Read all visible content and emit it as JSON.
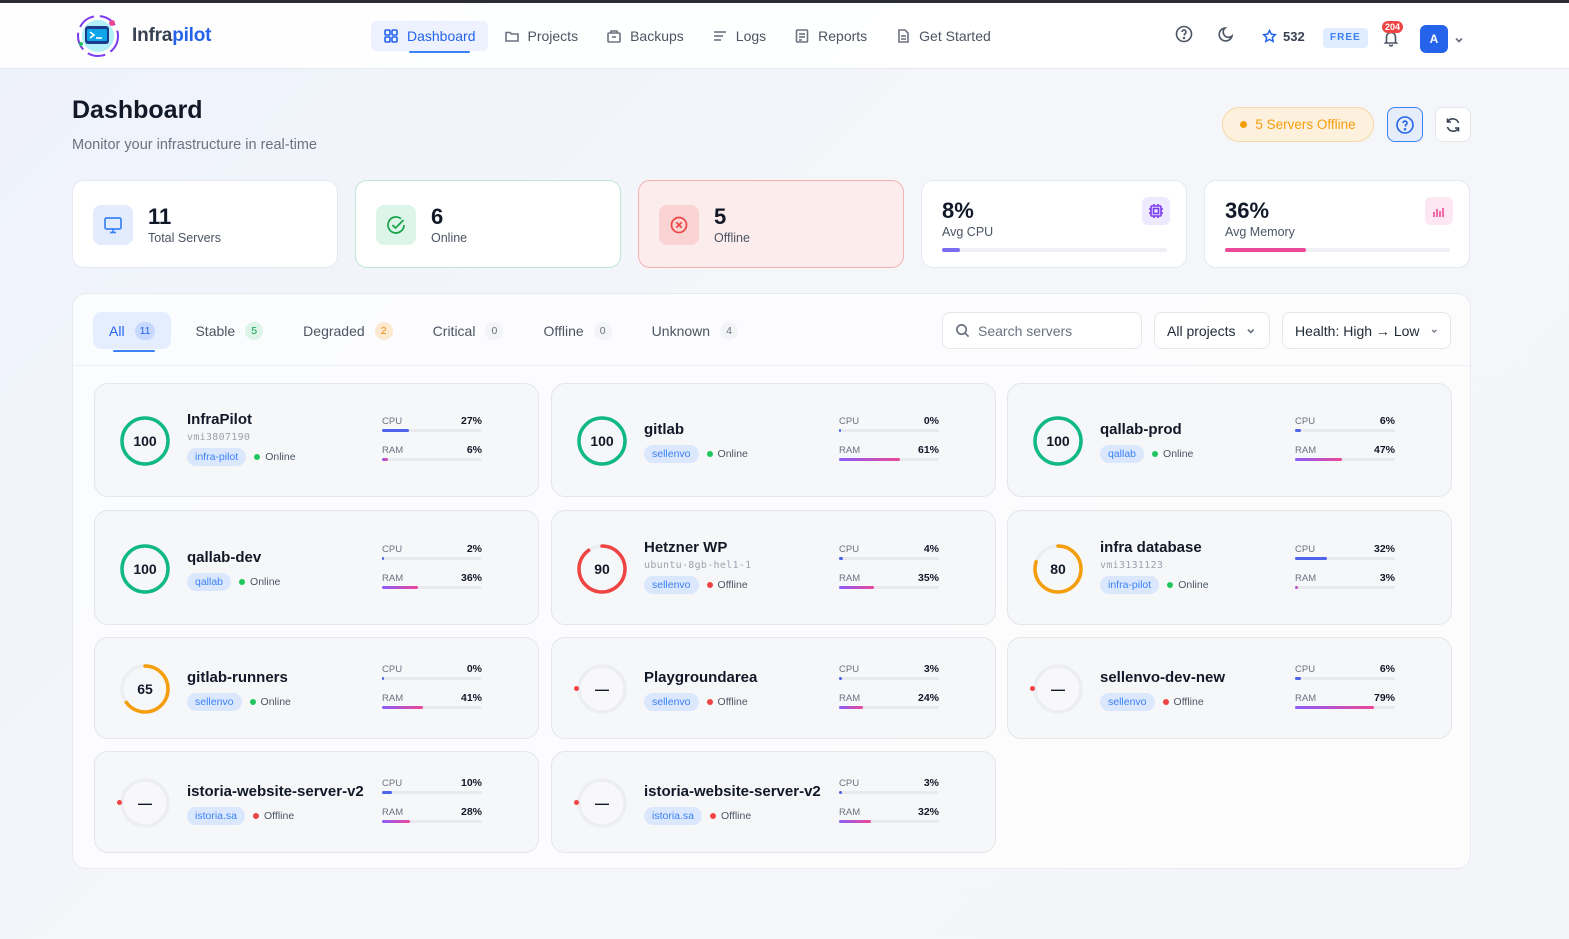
{
  "app": {
    "brand_prefix": "Infra",
    "brand_suffix": "pilot"
  },
  "nav": [
    {
      "label": "Dashboard",
      "icon": "grid-icon",
      "active": true
    },
    {
      "label": "Projects",
      "icon": "folder-icon"
    },
    {
      "label": "Backups",
      "icon": "archive-icon"
    },
    {
      "label": "Logs",
      "icon": "list-icon"
    },
    {
      "label": "Reports",
      "icon": "report-icon"
    },
    {
      "label": "Get Started",
      "icon": "document-icon"
    }
  ],
  "header": {
    "stars": "532",
    "plan": "FREE",
    "notifications": "204",
    "avatar_initial": "A"
  },
  "page": {
    "title": "Dashboard",
    "subtitle": "Monitor your infrastructure in real-time",
    "offline_alert": "5 Servers Offline"
  },
  "stats": {
    "total": {
      "value": "11",
      "label": "Total Servers"
    },
    "online": {
      "value": "6",
      "label": "Online"
    },
    "offline": {
      "value": "5",
      "label": "Offline"
    },
    "cpu": {
      "value": "8%",
      "label": "Avg CPU",
      "fraction": 0.08
    },
    "memory": {
      "value": "36%",
      "label": "Avg Memory",
      "fraction": 0.36
    }
  },
  "filters": {
    "tabs": [
      {
        "label": "All",
        "count": "11",
        "active": true
      },
      {
        "label": "Stable",
        "count": "5",
        "style": "green"
      },
      {
        "label": "Degraded",
        "count": "2",
        "style": "orange"
      },
      {
        "label": "Critical",
        "count": "0"
      },
      {
        "label": "Offline",
        "count": "0"
      },
      {
        "label": "Unknown",
        "count": "4"
      }
    ],
    "search_placeholder": "Search servers",
    "project_select": "All projects",
    "sort_select": "Health: High → Low"
  },
  "labels": {
    "cpu": "CPU",
    "ram": "RAM"
  },
  "servers": [
    {
      "name": "InfraPilot",
      "id": "vmi3807190",
      "tag": "infra-pilot",
      "status": "Online",
      "score": "100",
      "health": 1.0,
      "cpu": 27,
      "ram": 6
    },
    {
      "name": "gitlab",
      "id": "",
      "tag": "sellenvo",
      "status": "Online",
      "score": "100",
      "health": 1.0,
      "cpu": 0,
      "ram": 61
    },
    {
      "name": "qallab-prod",
      "id": "",
      "tag": "qallab",
      "status": "Online",
      "score": "100",
      "health": 1.0,
      "cpu": 6,
      "ram": 47
    },
    {
      "name": "qallab-dev",
      "id": "",
      "tag": "qallab",
      "status": "Online",
      "score": "100",
      "health": 1.0,
      "cpu": 2,
      "ram": 36
    },
    {
      "name": "Hetzner WP",
      "id": "ubuntu-8gb-hel1-1",
      "tag": "sellenvo",
      "status": "Offline",
      "score": "90",
      "health": 0.9,
      "cpu": 4,
      "ram": 35
    },
    {
      "name": "infra database",
      "id": "vmi3131123",
      "tag": "infra-pilot",
      "status": "Online",
      "score": "80",
      "health": 0.8,
      "cpu": 32,
      "ram": 3
    },
    {
      "name": "gitlab-runners",
      "id": "",
      "tag": "sellenvo",
      "status": "Online",
      "score": "65",
      "health": 0.65,
      "cpu": 0,
      "ram": 41
    },
    {
      "name": "Playgroundarea",
      "id": "",
      "tag": "sellenvo",
      "status": "Offline",
      "score": "—",
      "health": 0,
      "cpu": 3,
      "ram": 24
    },
    {
      "name": "sellenvo-dev-new",
      "id": "",
      "tag": "sellenvo",
      "status": "Offline",
      "score": "—",
      "health": 0,
      "cpu": 6,
      "ram": 79
    },
    {
      "name": "istoria-website-server-v2",
      "id": "",
      "tag": "istoria.sa",
      "status": "Offline",
      "score": "—",
      "health": 0,
      "cpu": 10,
      "ram": 28
    },
    {
      "name": "istoria-website-server-v2",
      "id": "",
      "tag": "istoria.sa",
      "status": "Offline",
      "score": "—",
      "health": 0,
      "cpu": 3,
      "ram": 32
    }
  ],
  "colors": {
    "accent": "#2563eb",
    "online": "#22c55e",
    "offline": "#ef4444",
    "gauge_green": "#10b981",
    "gauge_red": "#ef4444",
    "gauge_orange": "#f59e0b"
  }
}
